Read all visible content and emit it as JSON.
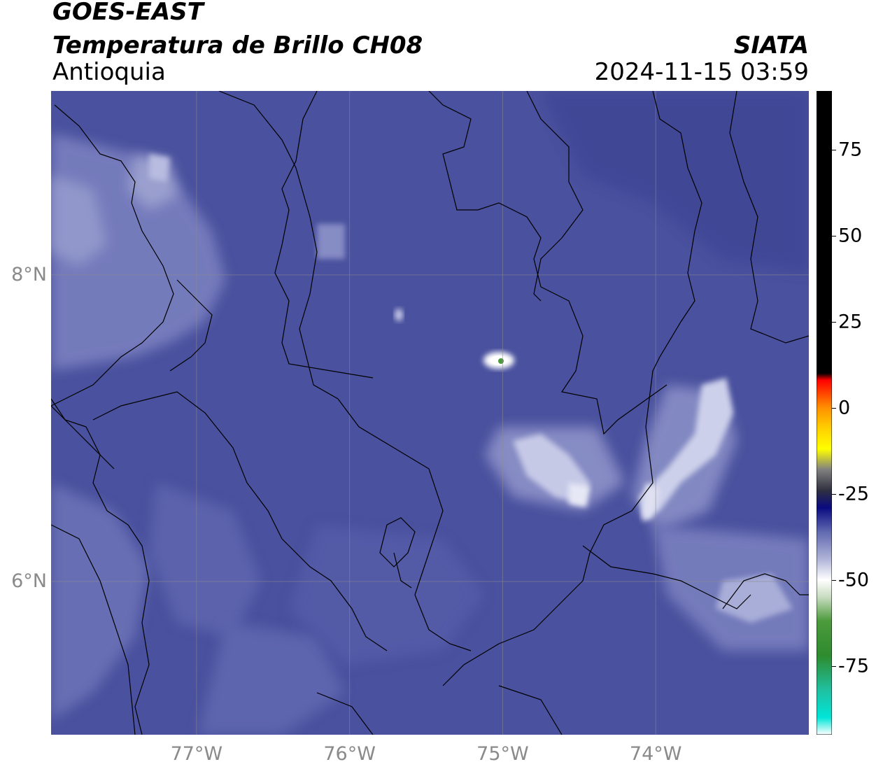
{
  "header": {
    "satellite": "GOES-EAST",
    "product": "Temperatura de Brillo CH08",
    "region": "Antioquia",
    "agency": "SIATA",
    "datetime": "2024-11-15 03:59"
  },
  "map": {
    "lon_range": [
      -77.95,
      -73.0
    ],
    "lat_range": [
      5.0,
      9.2
    ],
    "lat_ticks": [
      {
        "value": 8,
        "label": "8°N"
      },
      {
        "value": 6,
        "label": "6°N"
      }
    ],
    "lon_ticks": [
      {
        "value": -77,
        "label": "77°W"
      },
      {
        "value": -76,
        "label": "76°W"
      },
      {
        "value": -75,
        "label": "75°W"
      },
      {
        "value": -74,
        "label": "74°W"
      }
    ],
    "background_color": "#4a519e",
    "gridlines": true
  },
  "colorbar": {
    "range": [
      -95,
      92
    ],
    "ticks": [
      {
        "value": 75,
        "label": "75"
      },
      {
        "value": 50,
        "label": "50"
      },
      {
        "value": 25,
        "label": "25"
      },
      {
        "value": 0,
        "label": "0"
      },
      {
        "value": -25,
        "label": "-25"
      },
      {
        "value": -50,
        "label": "-50"
      },
      {
        "value": -75,
        "label": "-75"
      }
    ],
    "stops": [
      {
        "value": -95,
        "color": "#ffffff"
      },
      {
        "value": -90,
        "color": "#00e5d8"
      },
      {
        "value": -82,
        "color": "#20c0a0"
      },
      {
        "value": -72,
        "color": "#2e8b2e"
      },
      {
        "value": -62,
        "color": "#4c9a3c"
      },
      {
        "value": -55,
        "color": "#c8dcc0"
      },
      {
        "value": -50,
        "color": "#ffffff"
      },
      {
        "value": -44,
        "color": "#b0b4d8"
      },
      {
        "value": -36,
        "color": "#6068b0"
      },
      {
        "value": -29,
        "color": "#0a0a80"
      },
      {
        "value": -24,
        "color": "#303040"
      },
      {
        "value": -18,
        "color": "#808080"
      },
      {
        "value": -12,
        "color": "#ffff00"
      },
      {
        "value": -6,
        "color": "#ffd000"
      },
      {
        "value": 0,
        "color": "#ff9000"
      },
      {
        "value": 8,
        "color": "#ff0000"
      },
      {
        "value": 10,
        "color": "#000000"
      },
      {
        "value": 92,
        "color": "#000000"
      }
    ]
  }
}
